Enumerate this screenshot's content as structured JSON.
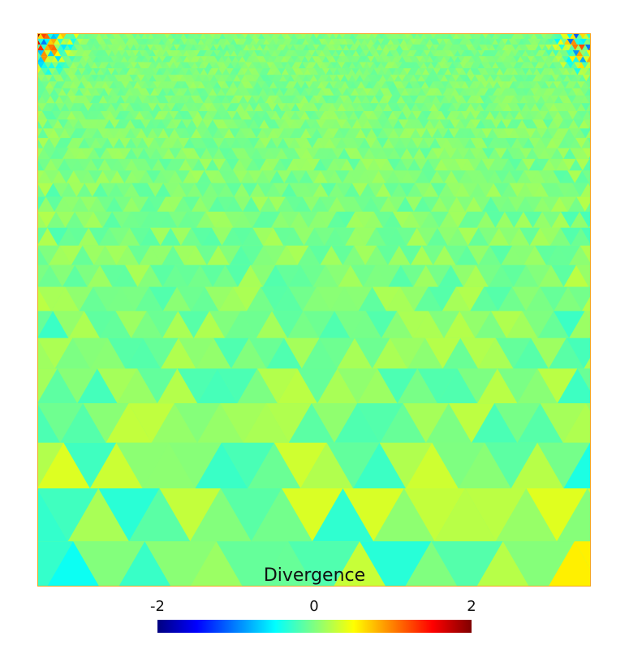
{
  "chart_data": {
    "type": "heatmap",
    "title": "Divergence",
    "colormap": "jet",
    "color_range": [
      -2,
      2
    ],
    "colorbar_ticks": [
      "-2",
      "0",
      "2"
    ],
    "border_color": "#f5a623",
    "background_value": 0.0,
    "field_description_values": {
      "interior_typical": 0.0,
      "edge_extremes": [
        -2,
        2
      ]
    }
  }
}
